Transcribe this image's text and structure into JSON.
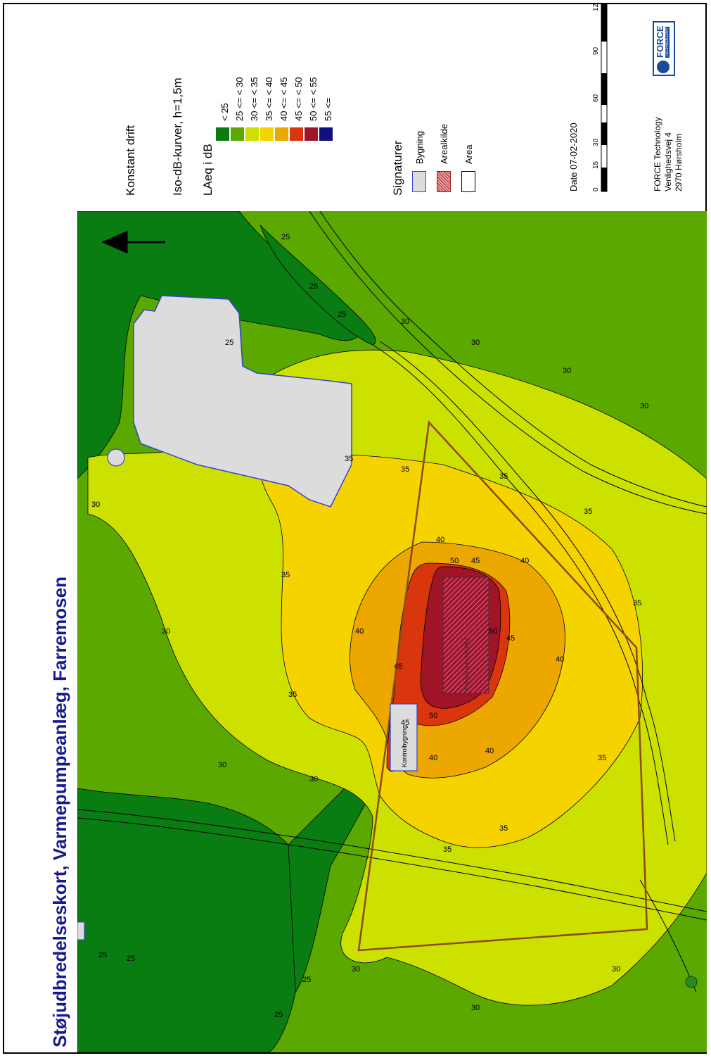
{
  "title": "Støjudbredelseskort, Varmepumpeanlæg, Farremosen",
  "legend": {
    "line1": "Konstant drift",
    "line2": "Iso-dB-kurver, h=1,5m",
    "heading": "LAeq i dB",
    "classes": [
      {
        "label": "< 25",
        "color": "#0a7d12"
      },
      {
        "label": "25 <=   < 30",
        "color": "#5aa800"
      },
      {
        "label": "30 <=   < 35",
        "color": "#cde100"
      },
      {
        "label": "35 <=   < 40",
        "color": "#f5d300"
      },
      {
        "label": "40 <=   < 45",
        "color": "#eca800"
      },
      {
        "label": "45 <=   < 50",
        "color": "#d9360e"
      },
      {
        "label": "50 <=   < 55",
        "color": "#a01428"
      },
      {
        "label": "55 <=",
        "color": "#10107e"
      }
    ]
  },
  "signatures": {
    "heading": "Signaturer",
    "items": [
      {
        "label": "Bygning",
        "fill": "#dcdcdc",
        "stroke": "#3344cc"
      },
      {
        "label": "Arealkilde",
        "fill": "#e59090",
        "stroke": "#9c1c1c"
      },
      {
        "label": "Area",
        "fill": "#ffffff",
        "stroke": "#000000"
      }
    ]
  },
  "date": "Date 07-02-2020",
  "scale_ticks": [
    "0",
    "15",
    "30",
    "60",
    "90",
    "12"
  ],
  "company": {
    "name": "FORCE Technology",
    "street": "Venlighedsvej 4",
    "city": "2970 Hørsholm",
    "logo_text": "FORCE",
    "logo_sub": "TECHNOLOGY"
  },
  "map": {
    "north_label": "N",
    "buildings": [
      "Kontrolbygning",
      "Fordampningsanlæg"
    ],
    "contour_labels": [
      "25",
      "30",
      "35",
      "40",
      "45",
      "50"
    ]
  },
  "colors": {
    "title": "#1a1a8c",
    "zone_lt25": "#0a7d12",
    "zone_25_30": "#5aa800",
    "zone_30_35": "#cde100",
    "zone_35_40": "#f5d300",
    "zone_40_45": "#eca800",
    "zone_45_50": "#d9360e",
    "zone_50_55": "#a01428",
    "site_outline": "#8a4a1a"
  }
}
